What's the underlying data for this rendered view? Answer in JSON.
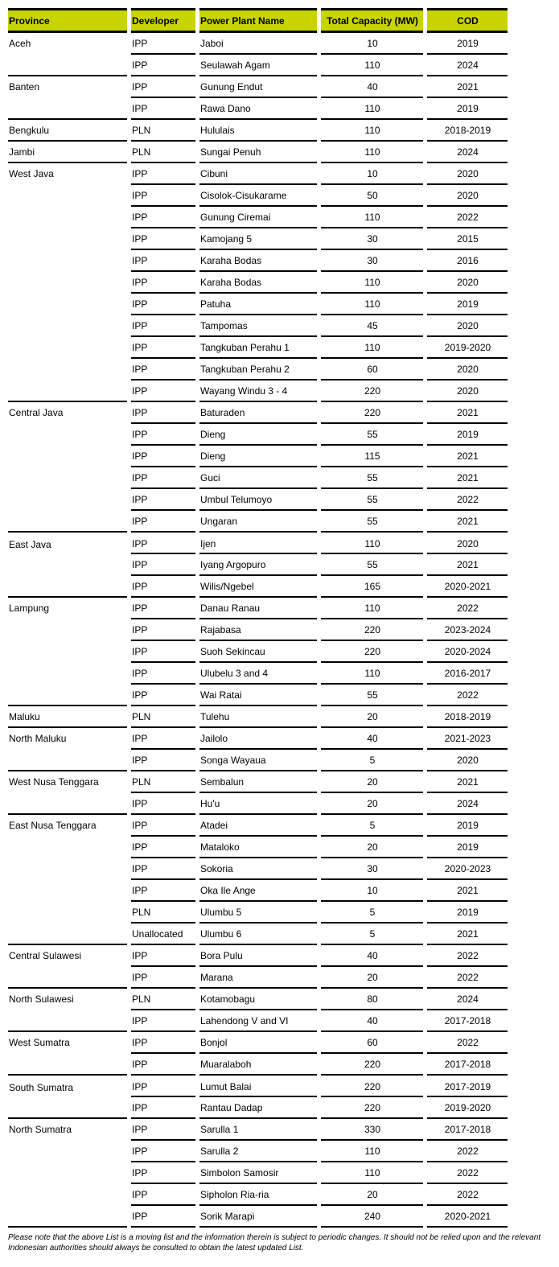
{
  "table": {
    "headers": [
      "Province",
      "Developer",
      "Power Plant Name",
      "Total Capacity (MW)",
      "COD"
    ],
    "groups": [
      {
        "province": "Aceh",
        "rows": [
          [
            "IPP",
            "Jaboi",
            "10",
            "2019"
          ],
          [
            "IPP",
            "Seulawah Agam",
            "110",
            "2024"
          ]
        ]
      },
      {
        "province": "Banten",
        "rows": [
          [
            "IPP",
            "Gunung Endut",
            "40",
            "2021"
          ],
          [
            "IPP",
            "Rawa Dano",
            "110",
            "2019"
          ]
        ]
      },
      {
        "province": "Bengkulu",
        "rows": [
          [
            "PLN",
            "Hululais",
            "110",
            "2018-2019"
          ]
        ]
      },
      {
        "province": "Jambi",
        "rows": [
          [
            "PLN",
            "Sungai Penuh",
            "110",
            "2024"
          ]
        ]
      },
      {
        "province": "West Java",
        "rows": [
          [
            "IPP",
            "Cibuni",
            "10",
            "2020"
          ],
          [
            "IPP",
            "Cisolok-Cisukarame",
            "50",
            "2020"
          ],
          [
            "IPP",
            "Gunung Ciremai",
            "110",
            "2022"
          ],
          [
            "IPP",
            "Kamojang 5",
            "30",
            "2015"
          ],
          [
            "IPP",
            "Karaha Bodas",
            "30",
            "2016"
          ],
          [
            "IPP",
            "Karaha Bodas",
            "110",
            "2020"
          ],
          [
            "IPP",
            "Patuha",
            "110",
            "2019"
          ],
          [
            "IPP",
            "Tampomas",
            "45",
            "2020"
          ],
          [
            "IPP",
            "Tangkuban Perahu 1",
            "110",
            "2019-2020"
          ],
          [
            "IPP",
            "Tangkuban Perahu 2",
            "60",
            "2020"
          ],
          [
            "IPP",
            "Wayang Windu 3 - 4",
            "220",
            "2020"
          ]
        ]
      },
      {
        "province": "Central Java",
        "rows": [
          [
            "IPP",
            "Baturaden",
            "220",
            "2021"
          ],
          [
            "IPP",
            "Dieng",
            "55",
            "2019"
          ],
          [
            "IPP",
            "Dieng",
            "115",
            "2021"
          ],
          [
            "IPP",
            "Guci",
            "55",
            "2021"
          ],
          [
            "IPP",
            "Umbul Telumoyo",
            "55",
            "2022"
          ],
          [
            "IPP",
            "Ungaran",
            "55",
            "2021"
          ]
        ]
      },
      {
        "province": "East Java",
        "rows": [
          [
            "IPP",
            "Ijen",
            "110",
            "2020"
          ],
          [
            "IPP",
            "Iyang Argopuro",
            "55",
            "2021"
          ],
          [
            "IPP",
            "Wilis/Ngebel",
            "165",
            "2020-2021"
          ]
        ]
      },
      {
        "province": "Lampung",
        "rows": [
          [
            "IPP",
            "Danau Ranau",
            "110",
            "2022"
          ],
          [
            "IPP",
            "Rajabasa",
            "220",
            "2023-2024"
          ],
          [
            "IPP",
            "Suoh Sekincau",
            "220",
            "2020-2024"
          ],
          [
            "IPP",
            "Ulubelu 3 and 4",
            "110",
            "2016-2017"
          ],
          [
            "IPP",
            "Wai Ratai",
            "55",
            "2022"
          ]
        ]
      },
      {
        "province": "Maluku",
        "rows": [
          [
            "PLN",
            "Tulehu",
            "20",
            "2018-2019"
          ]
        ]
      },
      {
        "province": "North Maluku",
        "rows": [
          [
            "IPP",
            "Jailolo",
            "40",
            "2021-2023"
          ],
          [
            "IPP",
            "Songa Wayaua",
            "5",
            "2020"
          ]
        ]
      },
      {
        "province": "West Nusa Tenggara",
        "rows": [
          [
            "PLN",
            "Sembalun",
            "20",
            "2021"
          ],
          [
            "IPP",
            "Hu'u",
            "20",
            "2024"
          ]
        ]
      },
      {
        "province": "East Nusa Tenggara",
        "rows": [
          [
            "IPP",
            "Atadei",
            "5",
            "2019"
          ],
          [
            "IPP",
            "Mataloko",
            "20",
            "2019"
          ],
          [
            "IPP",
            "Sokoria",
            "30",
            "2020-2023"
          ],
          [
            "IPP",
            "Oka Ile Ange",
            "10",
            "2021"
          ],
          [
            "PLN",
            "Ulumbu 5",
            "5",
            "2019"
          ],
          [
            "Unallocated",
            "Ulumbu 6",
            "5",
            "2021"
          ]
        ]
      },
      {
        "province": "Central Sulawesi",
        "rows": [
          [
            "IPP",
            "Bora Pulu",
            "40",
            "2022"
          ],
          [
            "IPP",
            "Marana",
            "20",
            "2022"
          ]
        ]
      },
      {
        "province": "North Sulawesi",
        "rows": [
          [
            "PLN",
            "Kotamobagu",
            "80",
            "2024"
          ],
          [
            "IPP",
            "Lahendong V and VI",
            "40",
            "2017-2018"
          ]
        ]
      },
      {
        "province": "West Sumatra",
        "rows": [
          [
            "IPP",
            "Bonjol",
            "60",
            "2022"
          ],
          [
            "IPP",
            "Muaralaboh",
            "220",
            "2017-2018"
          ]
        ]
      },
      {
        "province": "South Sumatra",
        "rows": [
          [
            "IPP",
            "Lumut Balai",
            "220",
            "2017-2019"
          ],
          [
            "IPP",
            "Rantau Dadap",
            "220",
            "2019-2020"
          ]
        ]
      },
      {
        "province": "North Sumatra",
        "rows": [
          [
            "IPP",
            "Sarulla 1",
            "330",
            "2017-2018"
          ],
          [
            "IPP",
            "Sarulla 2",
            "110",
            "2022"
          ],
          [
            "IPP",
            "Simbolon  Samosir",
            "110",
            "2022"
          ],
          [
            "IPP",
            "Sipholon Ria-ria",
            "20",
            "2022"
          ],
          [
            "IPP",
            "Sorik Marapi",
            "240",
            "2020-2021"
          ]
        ]
      }
    ]
  },
  "note": "Please note that the above List is a moving list and the information therein is subject to periodic changes. It should not be relied upon and the relevant Indonesian authorities should always be consulted to obtain the latest updated List.",
  "colors": {
    "header_bg": "#c8d400",
    "rule": "#000000"
  }
}
